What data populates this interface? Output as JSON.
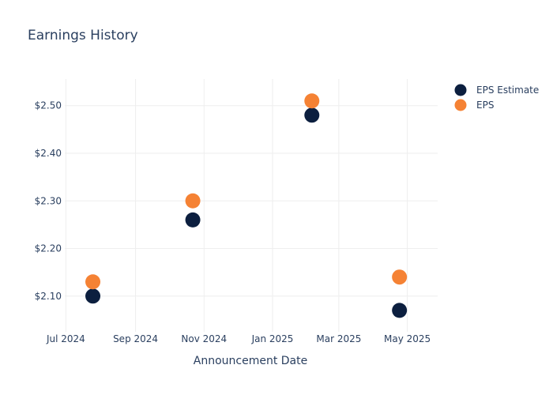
{
  "chart_data": {
    "type": "scatter",
    "title": "Earnings History",
    "xlabel": "Announcement Date",
    "ylabel": "",
    "x_ticks": [
      {
        "date": "2024-07-01",
        "label": "Jul 2024"
      },
      {
        "date": "2024-09-01",
        "label": "Sep 2024"
      },
      {
        "date": "2024-11-01",
        "label": "Nov 2024"
      },
      {
        "date": "2025-01-01",
        "label": "Jan 2025"
      },
      {
        "date": "2025-03-01",
        "label": "Mar 2025"
      },
      {
        "date": "2025-05-01",
        "label": "May 2025"
      }
    ],
    "y_ticks": [
      {
        "value": 2.1,
        "label": "$2.10"
      },
      {
        "value": 2.2,
        "label": "$2.20"
      },
      {
        "value": 2.3,
        "label": "$2.30"
      },
      {
        "value": 2.4,
        "label": "$2.40"
      },
      {
        "value": 2.5,
        "label": "$2.50"
      }
    ],
    "xlim": [
      "2024-06-30",
      "2025-05-28"
    ],
    "ylim": [
      2.025,
      2.556
    ],
    "grid": true,
    "legend_position": "top-right",
    "series": [
      {
        "name": "EPS Estimate",
        "color": "#0c1f3f",
        "points": [
          {
            "x": "2024-07-25",
            "y": 2.1
          },
          {
            "x": "2024-10-22",
            "y": 2.26
          },
          {
            "x": "2025-02-05",
            "y": 2.48
          },
          {
            "x": "2025-04-24",
            "y": 2.07
          }
        ]
      },
      {
        "name": "EPS",
        "color": "#f58234",
        "points": [
          {
            "x": "2024-07-25",
            "y": 2.13
          },
          {
            "x": "2024-10-22",
            "y": 2.3
          },
          {
            "x": "2025-02-05",
            "y": 2.51
          },
          {
            "x": "2025-04-24",
            "y": 2.14
          }
        ]
      }
    ]
  }
}
